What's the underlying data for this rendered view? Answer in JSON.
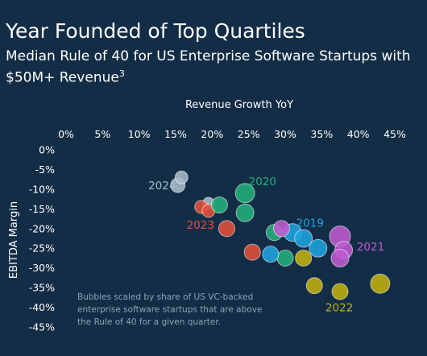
{
  "header": {
    "title": "Year Founded of Top Quartiles",
    "subtitle_main": "Median Rule of 40 for US Enterprise Software Startups with $50M+ Revenue",
    "subtitle_sup": "3"
  },
  "chart_data": {
    "type": "scatter",
    "xlabel": "Revenue Growth YoY",
    "ylabel": "EBITDA Margin",
    "xlim": [
      0,
      45
    ],
    "ylim": [
      -45,
      0
    ],
    "x_ticks": [
      "0%",
      "5%",
      "10%",
      "15%",
      "20%",
      "25%",
      "30%",
      "35%",
      "40%",
      "45%"
    ],
    "y_ticks": [
      "0%",
      "-5%",
      "-10%",
      "-15%",
      "-20%",
      "-25%",
      "-30%",
      "-35%",
      "-40%",
      "-45%"
    ],
    "grid": false,
    "note": [
      "Bubbles scaled by share of US VC-backed",
      "enterprise software startups that are above",
      "the Rule of 40 for a given quarter."
    ],
    "series": [
      {
        "name": "2024",
        "color": "#a9bcc9",
        "points": [
          {
            "x": 15.3,
            "y": -9,
            "r": 9
          },
          {
            "x": 15.8,
            "y": -7,
            "r": 8
          },
          {
            "x": 19.5,
            "y": -13.5,
            "r": 7
          }
        ]
      },
      {
        "name": "2023",
        "color": "#e2513c",
        "points": [
          {
            "x": 18.5,
            "y": -14.5,
            "r": 8
          },
          {
            "x": 19.5,
            "y": -15.5,
            "r": 8
          },
          {
            "x": 22,
            "y": -20,
            "r": 10
          },
          {
            "x": 25.5,
            "y": -26,
            "r": 10
          }
        ]
      },
      {
        "name": "2020",
        "color": "#23b07a",
        "points": [
          {
            "x": 21,
            "y": -14,
            "r": 10
          },
          {
            "x": 24.5,
            "y": -11,
            "r": 12
          },
          {
            "x": 24.5,
            "y": -16,
            "r": 11
          },
          {
            "x": 28.5,
            "y": -21,
            "r": 10
          },
          {
            "x": 30,
            "y": -27.5,
            "r": 10
          }
        ]
      },
      {
        "name": "2019",
        "color": "#1ea4e0",
        "points": [
          {
            "x": 28,
            "y": -26.5,
            "r": 10
          },
          {
            "x": 31,
            "y": -21,
            "r": 11
          },
          {
            "x": 32.5,
            "y": -22.5,
            "r": 11
          },
          {
            "x": 34.5,
            "y": -25,
            "r": 11
          }
        ]
      },
      {
        "name": "2021",
        "color": "#c05bd1",
        "points": [
          {
            "x": 29.5,
            "y": -20,
            "r": 10
          },
          {
            "x": 37.5,
            "y": -22,
            "r": 13
          },
          {
            "x": 38,
            "y": -25.5,
            "r": 11
          },
          {
            "x": 37.5,
            "y": -27.5,
            "r": 11
          }
        ]
      },
      {
        "name": "2022",
        "color": "#c2b20f",
        "points": [
          {
            "x": 32.5,
            "y": -27.5,
            "r": 10
          },
          {
            "x": 34,
            "y": -34.5,
            "r": 10
          },
          {
            "x": 37.5,
            "y": -36,
            "r": 10
          },
          {
            "x": 43,
            "y": -34,
            "r": 12
          }
        ]
      }
    ]
  }
}
